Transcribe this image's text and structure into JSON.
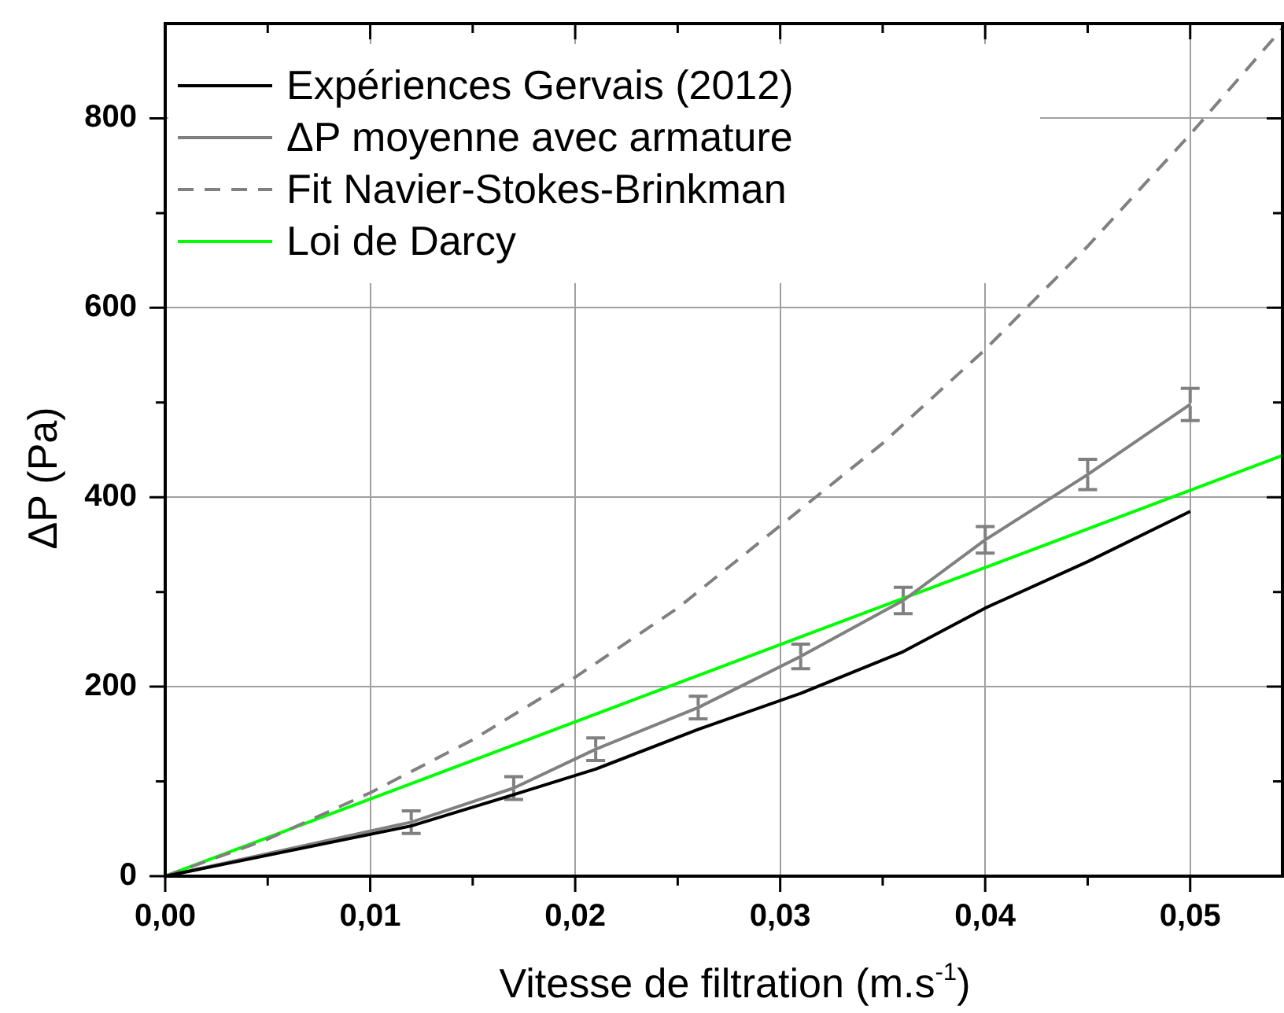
{
  "chart_data": {
    "type": "line",
    "xlabel": "Vitesse de filtration (m.s$^{-1}$)",
    "ylabel": "ΔP (Pa)",
    "xlim": [
      0,
      0.0545
    ],
    "ylim": [
      0,
      900
    ],
    "xticks": [
      {
        "value": 0,
        "label": "0,00"
      },
      {
        "value": 0.005,
        "label": null
      },
      {
        "value": 0.01,
        "label": "0,01"
      },
      {
        "value": 0.015,
        "label": null
      },
      {
        "value": 0.02,
        "label": "0,02"
      },
      {
        "value": 0.025,
        "label": null
      },
      {
        "value": 0.03,
        "label": "0,03"
      },
      {
        "value": 0.035,
        "label": null
      },
      {
        "value": 0.04,
        "label": "0,04"
      },
      {
        "value": 0.045,
        "label": null
      },
      {
        "value": 0.05,
        "label": "0,05"
      }
    ],
    "yticks": [
      0,
      {
        "value": 100,
        "label": null
      },
      200,
      {
        "value": 300,
        "label": null
      },
      400,
      {
        "value": 500,
        "label": null
      },
      600,
      {
        "value": 700,
        "label": null
      },
      800
    ],
    "grid": true,
    "legend": "top left",
    "marker": "none",
    "series": [
      {
        "name": "Expériences Gervais (2012)",
        "color": "#000000",
        "x": [
          0,
          0.012,
          0.017,
          0.021,
          0.026,
          0.031,
          0.036,
          0.04,
          0.045,
          0.05
        ],
        "values": [
          0,
          53,
          86,
          113,
          155,
          193,
          237,
          283,
          332,
          385
        ]
      },
      {
        "name": "ΔP moyenne avec armature",
        "color": "#808080",
        "x": [
          0,
          0.012,
          0.017,
          0.021,
          0.026,
          0.031,
          0.036,
          0.04,
          0.045,
          0.05
        ],
        "values": [
          0,
          57,
          93,
          134,
          178,
          232,
          291,
          355,
          424,
          498
        ],
        "errors": [
          null,
          12,
          12,
          12,
          12,
          13,
          14,
          14,
          16,
          17
        ]
      },
      {
        "name": "Fit Navier-Stokes-Brinkman",
        "color": "#808080",
        "line_style": "dashed",
        "x": [
          0,
          0.005,
          0.01,
          0.015,
          0.02,
          0.025,
          0.03,
          0.035,
          0.04,
          0.045,
          0.05,
          0.0545
        ],
        "values": [
          0,
          39,
          88,
          144,
          210,
          283,
          370,
          457,
          556,
          665,
          783,
          895
        ]
      },
      {
        "name": "Loi de Darcy",
        "color": "#00ff00",
        "x": [
          0,
          0.0545
        ],
        "values": [
          0,
          444
        ]
      }
    ]
  }
}
